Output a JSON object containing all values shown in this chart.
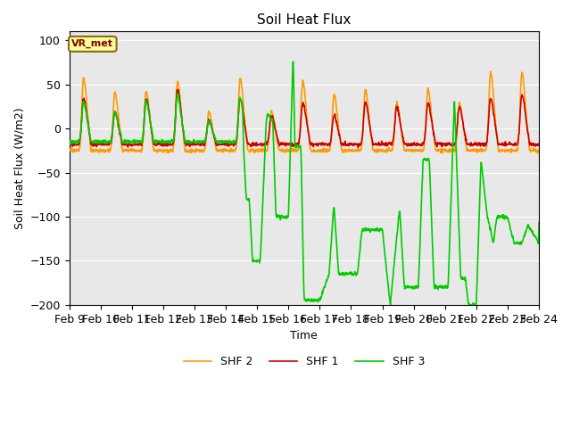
{
  "title": "Soil Heat Flux",
  "ylabel": "Soil Heat Flux (W/m2)",
  "xlabel": "Time",
  "ylim": [
    -200,
    110
  ],
  "yticks": [
    -200,
    -150,
    -100,
    -50,
    0,
    50,
    100
  ],
  "x_labels": [
    "Feb 9",
    "Feb 10",
    "Feb 11",
    "Feb 12",
    "Feb 13",
    "Feb 14",
    "Feb 15",
    "Feb 16",
    "Feb 17",
    "Feb 18",
    "Feb 19",
    "Feb 20",
    "Feb 21",
    "Feb 22",
    "Feb 23",
    "Feb 24"
  ],
  "colors": {
    "SHF 1": "#cc0000",
    "SHF 2": "#ff9900",
    "SHF 3": "#00cc00"
  },
  "linewidth": 1.2,
  "bg_color": "#e8e8e8",
  "annotation_text": "VR_met",
  "annotation_box_facecolor": "#ffff99",
  "annotation_box_edgecolor": "#8B6914",
  "legend_labels": [
    "SHF 1",
    "SHF 2",
    "SHF 3"
  ],
  "n_days": 15,
  "pts_per_day": 96
}
